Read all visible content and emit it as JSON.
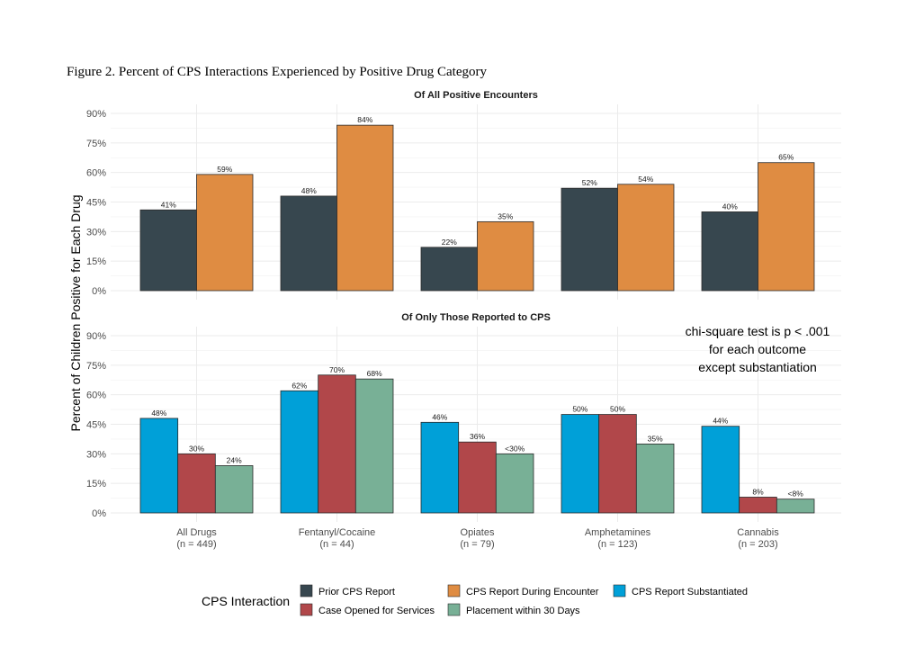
{
  "figure_title": "Figure 2. Percent of CPS Interactions Experienced by Positive Drug Category",
  "ylabel": "Percent of Children Positive for Each Drug",
  "legend_title": "CPS Interaction",
  "annotation": [
    "chi-square test is p < .001",
    "for each outcome",
    "except substantiation"
  ],
  "colors": {
    "Prior CPS Report": "#37474f",
    "CPS Report During Encounter": "#df8c42",
    "CPS Report Substantiated": "#00a0d8",
    "Case Opened for Services": "#b1474a",
    "Placement within 30 Days": "#78b096"
  },
  "legend_items": [
    {
      "name": "Prior CPS Report"
    },
    {
      "name": "CPS Report During Encounter"
    },
    {
      "name": "CPS Report Substantiated"
    },
    {
      "name": "Case Opened for Services"
    },
    {
      "name": "Placement within 30 Days"
    }
  ],
  "chart_data": [
    {
      "type": "bar",
      "title": "Of All Positive Encounters",
      "categories": [
        "All Drugs",
        "Fentanyl/Cocaine",
        "Opiates",
        "Amphetamines",
        "Cannabis"
      ],
      "yticks": [
        "0%",
        "15%",
        "30%",
        "45%",
        "60%",
        "75%",
        "90%"
      ],
      "ylim": [
        0,
        90
      ],
      "grid": true,
      "series": [
        {
          "name": "Prior CPS Report",
          "values": [
            41,
            48,
            22,
            52,
            40
          ],
          "labels": [
            "41%",
            "48%",
            "22%",
            "52%",
            "40%"
          ]
        },
        {
          "name": "CPS Report During Encounter",
          "values": [
            59,
            84,
            35,
            54,
            65
          ],
          "labels": [
            "59%",
            "84%",
            "35%",
            "54%",
            "65%"
          ]
        }
      ]
    },
    {
      "type": "bar",
      "title": "Of Only Those Reported to CPS",
      "categories": [
        "All Drugs",
        "Fentanyl/Cocaine",
        "Opiates",
        "Amphetamines",
        "Cannabis"
      ],
      "category_n": [
        "(n = 449)",
        "(n = 44)",
        "(n = 79)",
        "(n = 123)",
        "(n = 203)"
      ],
      "yticks": [
        "0%",
        "15%",
        "30%",
        "45%",
        "60%",
        "75%",
        "90%"
      ],
      "ylim": [
        0,
        90
      ],
      "grid": true,
      "series": [
        {
          "name": "CPS Report Substantiated",
          "values": [
            48,
            62,
            46,
            50,
            44
          ],
          "labels": [
            "48%",
            "62%",
            "46%",
            "50%",
            "44%"
          ]
        },
        {
          "name": "Case Opened for Services",
          "values": [
            30,
            70,
            36,
            50,
            8
          ],
          "labels": [
            "30%",
            "70%",
            "36%",
            "50%",
            "8%"
          ]
        },
        {
          "name": "Placement within 30 Days",
          "values": [
            24,
            68,
            30,
            35,
            7
          ],
          "labels": [
            "24%",
            "68%",
            "<30%",
            "35%",
            "<8%"
          ]
        }
      ]
    }
  ]
}
